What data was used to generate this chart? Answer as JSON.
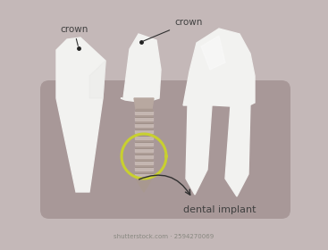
{
  "bg_color": "#c4b8b8",
  "gum_color": "#a89898",
  "tooth_color": "#f2f2f0",
  "tooth_off_white": "#e8e8e6",
  "screw_body_color": "#a89890",
  "screw_thread_color": "#c8bab5",
  "screw_thread_dark": "#988880",
  "circle_color": "#c8d030",
  "text_color": "#404040",
  "annotation_color": "#303030",
  "crown_left_text": "crown",
  "crown_mid_text": "crown",
  "implant_text": "dental implant",
  "watermark": "shutterstock.com · 2594270069"
}
